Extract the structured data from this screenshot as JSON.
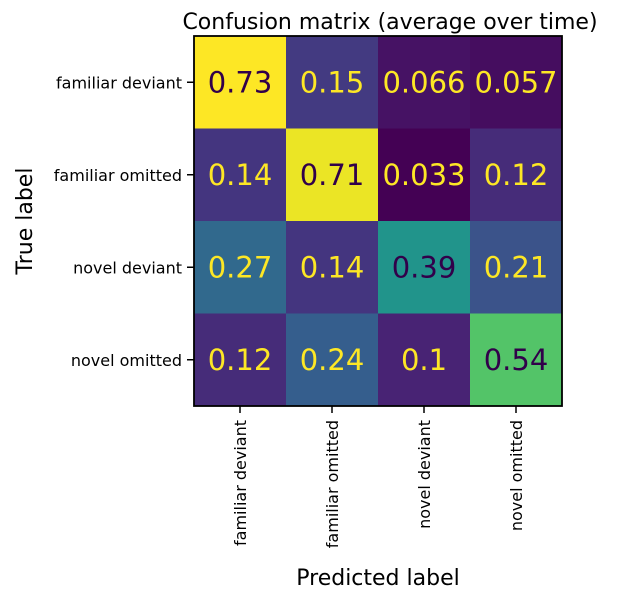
{
  "chart_data": {
    "type": "heatmap",
    "title": "Confusion matrix (average over time)",
    "xlabel": "Predicted label",
    "ylabel": "True label",
    "x_categories": [
      "familiar deviant",
      "familiar omitted",
      "novel deviant",
      "novel omitted"
    ],
    "y_categories": [
      "familiar deviant",
      "familiar omitted",
      "novel deviant",
      "novel omitted"
    ],
    "values": [
      [
        0.73,
        0.15,
        0.066,
        0.057
      ],
      [
        0.14,
        0.71,
        0.033,
        0.12
      ],
      [
        0.27,
        0.14,
        0.39,
        0.21
      ],
      [
        0.12,
        0.24,
        0.1,
        0.54
      ]
    ],
    "value_labels": [
      [
        "0.73",
        "0.15",
        "0.066",
        "0.057"
      ],
      [
        "0.14",
        "0.71",
        "0.033",
        "0.12"
      ],
      [
        "0.27",
        "0.14",
        "0.39",
        "0.21"
      ],
      [
        "0.12",
        "0.24",
        "0.1",
        "0.54"
      ]
    ],
    "colormap": "viridis",
    "text_colors": {
      "light": "#fde725",
      "dark": "#31004a"
    }
  }
}
